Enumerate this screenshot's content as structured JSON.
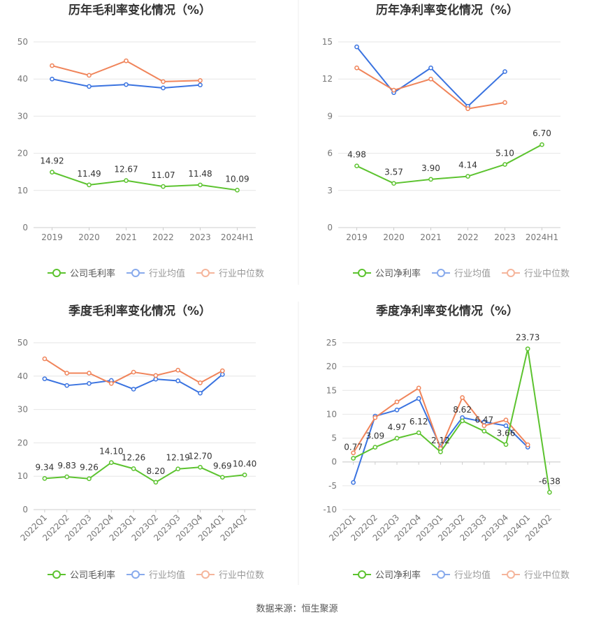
{
  "source": "数据来源：恒生聚源",
  "legend": {
    "company_gross": "公司毛利率",
    "company_net": "公司净利率",
    "industry_avg": "行业均值",
    "industry_median": "行业中位数"
  },
  "colors": {
    "company": "#5cc32f",
    "industry_avg": "#3a73e0",
    "industry_median": "#f0845a",
    "grid": "#e6e6e6",
    "axis": "#cccccc"
  },
  "chart_data": [
    {
      "id": "annual-gross",
      "type": "line",
      "title": "历年毛利率变化情况（%）",
      "categories": [
        "2019",
        "2020",
        "2021",
        "2022",
        "2023",
        "2024H1"
      ],
      "ylim": [
        0,
        50
      ],
      "yticks": [
        0,
        10,
        20,
        30,
        40,
        50
      ],
      "series": [
        {
          "name": "公司毛利率",
          "key": "company",
          "values": [
            14.92,
            11.49,
            12.67,
            11.07,
            11.48,
            10.09
          ],
          "labels": true
        },
        {
          "name": "行业均值",
          "key": "industry_avg",
          "values": [
            40.0,
            38.0,
            38.5,
            37.6,
            38.4,
            null
          ]
        },
        {
          "name": "行业中位数",
          "key": "industry_median",
          "values": [
            43.6,
            41.0,
            44.9,
            39.3,
            39.6,
            null
          ]
        }
      ],
      "legend": [
        "公司毛利率",
        "行业均值",
        "行业中位数"
      ]
    },
    {
      "id": "annual-net",
      "type": "line",
      "title": "历年净利率变化情况（%）",
      "categories": [
        "2019",
        "2020",
        "2021",
        "2022",
        "2023",
        "2024H1"
      ],
      "ylim": [
        0,
        15
      ],
      "yticks": [
        0,
        3,
        6,
        9,
        12,
        15
      ],
      "series": [
        {
          "name": "公司净利率",
          "key": "company",
          "values": [
            4.98,
            3.57,
            3.9,
            4.14,
            5.1,
            6.7
          ],
          "labels": true
        },
        {
          "name": "行业均值",
          "key": "industry_avg",
          "values": [
            14.6,
            10.9,
            12.9,
            9.8,
            12.6,
            null
          ]
        },
        {
          "name": "行业中位数",
          "key": "industry_median",
          "values": [
            12.9,
            11.1,
            12.0,
            9.6,
            10.1,
            null
          ]
        }
      ],
      "legend": [
        "公司净利率",
        "行业均值",
        "行业中位数"
      ]
    },
    {
      "id": "quarterly-gross",
      "type": "line",
      "title": "季度毛利率变化情况（%）",
      "categories": [
        "2022Q1",
        "2022Q2",
        "2022Q3",
        "2022Q4",
        "2023Q1",
        "2023Q2",
        "2023Q3",
        "2023Q4",
        "2024Q1",
        "2024Q2"
      ],
      "ylim": [
        0,
        50
      ],
      "yticks": [
        0,
        10,
        20,
        30,
        40,
        50
      ],
      "series": [
        {
          "name": "公司毛利率",
          "key": "company",
          "values": [
            9.34,
            9.83,
            9.26,
            14.1,
            12.26,
            8.2,
            12.19,
            12.7,
            9.69,
            10.4
          ],
          "labels": true
        },
        {
          "name": "行业均值",
          "key": "industry_avg",
          "values": [
            39.2,
            37.2,
            37.8,
            38.7,
            36.1,
            39.1,
            38.6,
            34.9,
            40.5,
            null
          ]
        },
        {
          "name": "行业中位数",
          "key": "industry_median",
          "values": [
            45.2,
            40.9,
            40.9,
            37.8,
            41.2,
            40.2,
            41.8,
            38.0,
            41.6,
            null
          ]
        }
      ],
      "legend": [
        "公司毛利率",
        "行业均值",
        "行业中位数"
      ]
    },
    {
      "id": "quarterly-net",
      "type": "line",
      "title": "季度净利率变化情况（%）",
      "categories": [
        "2022Q1",
        "2022Q2",
        "2022Q3",
        "2022Q4",
        "2023Q1",
        "2023Q2",
        "2023Q3",
        "2023Q4",
        "2024Q1",
        "2024Q2"
      ],
      "ylim": [
        -10,
        25
      ],
      "yticks": [
        -10,
        -5,
        0,
        5,
        10,
        15,
        20,
        25
      ],
      "series": [
        {
          "name": "公司净利率",
          "key": "company",
          "values": [
            0.77,
            3.09,
            4.97,
            6.12,
            2.12,
            8.62,
            6.47,
            3.66,
            23.73,
            -6.38
          ],
          "labels": true
        },
        {
          "name": "行业均值",
          "key": "industry_avg",
          "values": [
            -4.3,
            9.6,
            10.9,
            13.3,
            3.2,
            9.3,
            8.4,
            7.6,
            3.1,
            null
          ]
        },
        {
          "name": "行业中位数",
          "key": "industry_median",
          "values": [
            1.9,
            9.3,
            12.6,
            15.5,
            2.8,
            13.5,
            7.6,
            8.8,
            3.6,
            null
          ]
        }
      ],
      "legend": [
        "公司净利率",
        "行业均值",
        "行业中位数"
      ]
    }
  ]
}
